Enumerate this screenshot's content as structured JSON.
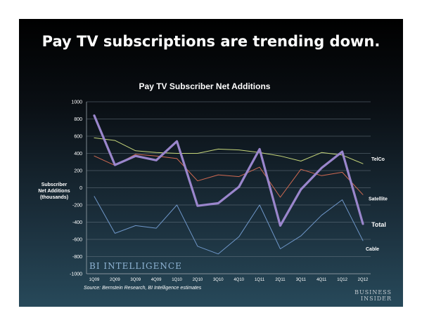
{
  "headline": "Pay TV subscriptions are trending down.",
  "source": "Source: Bernstein Research, BI Intelligence estimates",
  "logo": "BI INTELLIGENCE",
  "brand": {
    "line1": "BUSINESS",
    "line2": "INSIDER"
  },
  "colors": {
    "telco": "#c6d67a",
    "satellite": "#d16a52",
    "total": "#9a86cc",
    "cable": "#6f97c9"
  },
  "chart_data": {
    "type": "line",
    "title": "Pay TV Subscriber Net Additions",
    "ylabel_lines": [
      "Subscriber",
      "Net Additions",
      "(thousands)"
    ],
    "x": [
      "1Q09",
      "2Q09",
      "3Q09",
      "4Q09",
      "1Q10",
      "2Q10",
      "3Q10",
      "4Q10",
      "1Q11",
      "2Q11",
      "3Q11",
      "4Q11",
      "1Q12",
      "2Q12"
    ],
    "ylim": [
      -1000,
      1000
    ],
    "yticks": [
      1000,
      800,
      600,
      400,
      200,
      0,
      -200,
      -400,
      -600,
      -800,
      -1000
    ],
    "grid": true,
    "series": [
      {
        "name": "TelCo",
        "values": [
          580,
          550,
          430,
          410,
          400,
          400,
          450,
          440,
          410,
          370,
          310,
          410,
          380,
          280
        ]
      },
      {
        "name": "Satellite",
        "values": [
          370,
          260,
          390,
          370,
          340,
          80,
          150,
          130,
          240,
          -110,
          215,
          140,
          180,
          -80
        ]
      },
      {
        "name": "Total",
        "values": [
          840,
          265,
          370,
          320,
          540,
          -210,
          -180,
          10,
          450,
          -440,
          -20,
          230,
          420,
          -420
        ]
      },
      {
        "name": "Cable",
        "values": [
          -100,
          -530,
          -440,
          -470,
          -200,
          -680,
          -770,
          -570,
          -200,
          -710,
          -560,
          -320,
          -140,
          -615
        ]
      }
    ]
  }
}
